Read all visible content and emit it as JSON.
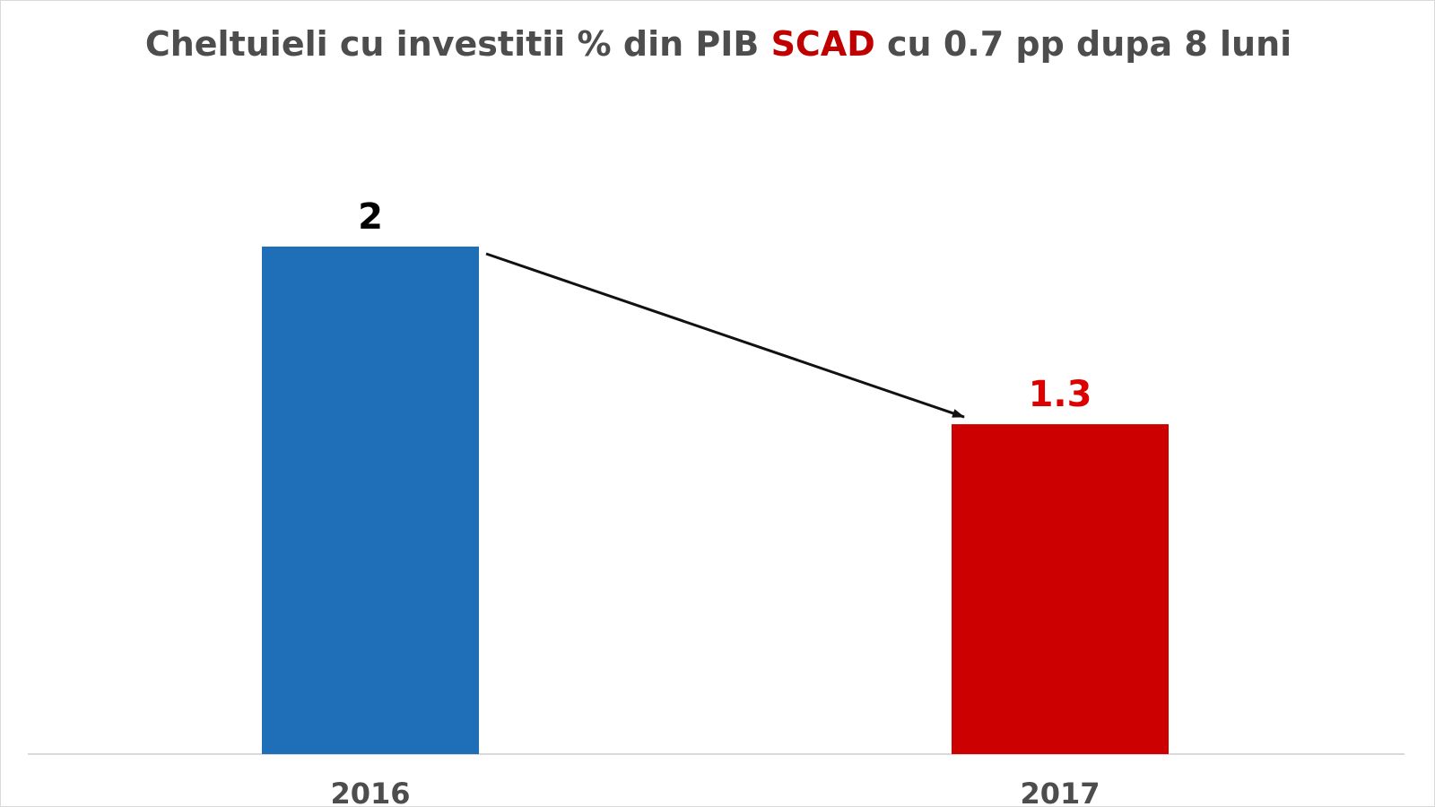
{
  "chart_data": {
    "type": "bar",
    "title": {
      "before": "Cheltuieli cu investitii % din PIB ",
      "highlight": "SCAD",
      "after": " cu 0.7 pp dupa 8 luni"
    },
    "categories": [
      "2016",
      "2017"
    ],
    "values": [
      2,
      1.3
    ],
    "data_labels": [
      "2",
      "1.3"
    ],
    "bar_colors": [
      "#1f6fb8",
      "#cc0000"
    ],
    "label_colors": [
      "#000000",
      "#dd0000"
    ],
    "title_color": "#4d4d4d",
    "title_highlight_color": "#c00000",
    "ylim": [
      0,
      2
    ],
    "grid": false,
    "legend": "none",
    "annotation": "arrow-from-2016-to-2017"
  }
}
